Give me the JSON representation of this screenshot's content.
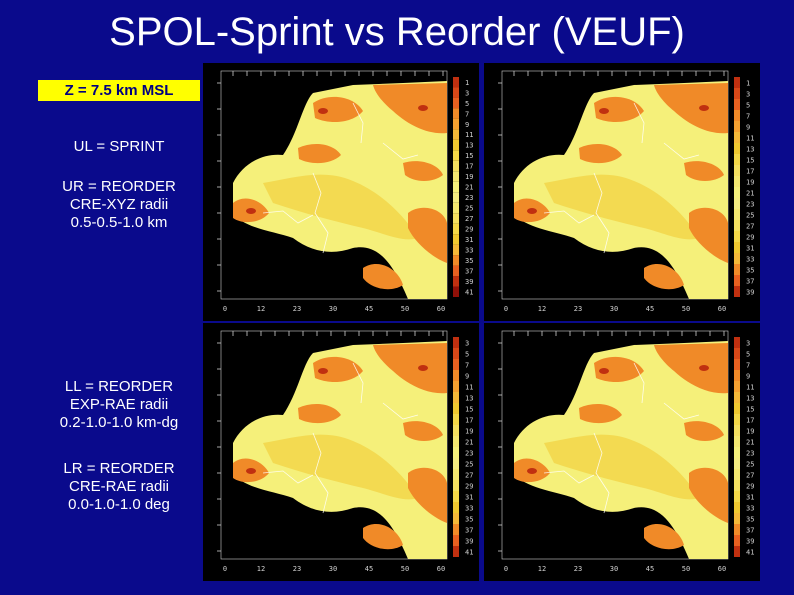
{
  "title": "SPOL-Sprint vs Reorder (VEUF)",
  "level_label": "Z = 7.5 km MSL",
  "descriptions": {
    "ul": [
      "UL = SPRINT"
    ],
    "ur": [
      "UR = REORDER",
      "CRE-XYZ radii",
      "0.5-0.5-1.0 km"
    ],
    "ll": [
      "LL = REORDER",
      "EXP-RAE radii",
      "0.2-1.0-1.0 km-dg"
    ],
    "lr": [
      "LR = REORDER",
      "CRE-RAE radii",
      "0.0-1.0-1.0 deg"
    ]
  },
  "panels": [
    {
      "id": "ul",
      "x_ticks": [
        "0",
        "12",
        "23",
        "30",
        "45",
        "50",
        "60"
      ],
      "scale": [
        "1",
        "3",
        "5",
        "7",
        "9",
        "11",
        "13",
        "15",
        "17",
        "19",
        "21",
        "23",
        "25",
        "27",
        "29",
        "31",
        "33",
        "35",
        "37",
        "39",
        "41"
      ]
    },
    {
      "id": "ur",
      "x_ticks": [
        "0",
        "12",
        "23",
        "30",
        "45",
        "50",
        "60"
      ],
      "scale": [
        "1",
        "3",
        "5",
        "7",
        "9",
        "11",
        "13",
        "15",
        "17",
        "19",
        "21",
        "23",
        "25",
        "27",
        "29",
        "31",
        "33",
        "35",
        "37",
        "39"
      ]
    },
    {
      "id": "ll",
      "x_ticks": [
        "0",
        "12",
        "23",
        "30",
        "45",
        "50",
        "60"
      ],
      "scale": [
        "3",
        "5",
        "7",
        "9",
        "11",
        "13",
        "15",
        "17",
        "19",
        "21",
        "23",
        "25",
        "27",
        "29",
        "31",
        "33",
        "35",
        "37",
        "39",
        "41"
      ]
    },
    {
      "id": "lr",
      "x_ticks": [
        "0",
        "12",
        "23",
        "30",
        "45",
        "50",
        "60"
      ],
      "scale": [
        "3",
        "5",
        "7",
        "9",
        "11",
        "13",
        "15",
        "17",
        "19",
        "21",
        "23",
        "25",
        "27",
        "29",
        "31",
        "33",
        "35",
        "37",
        "39",
        "41"
      ]
    }
  ],
  "colors": {
    "background": "#0a0a8c",
    "label_bg": "#ffff00",
    "echo_low": "#f5f07a",
    "echo_mid": "#f0c830",
    "echo_high": "#f08a28",
    "echo_max": "#c03010"
  }
}
